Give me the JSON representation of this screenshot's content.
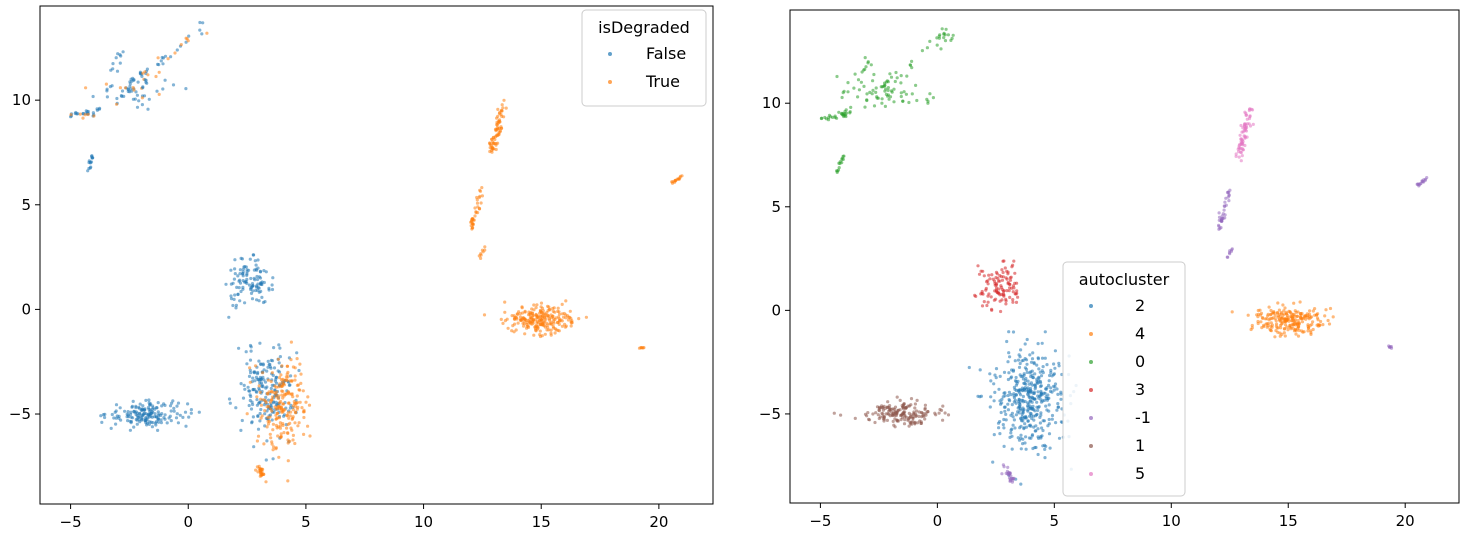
{
  "chart_data": [
    {
      "type": "scatter",
      "title": "",
      "xlabel": "",
      "ylabel": "",
      "xlim": [
        -6.3,
        22.3
      ],
      "ylim": [
        -9.3,
        14.5
      ],
      "x_ticks": [
        -5,
        0,
        5,
        10,
        15,
        20
      ],
      "y_ticks": [
        -5,
        0,
        5,
        10
      ],
      "grid": false,
      "legend": {
        "title": "isDegraded",
        "placement": "top-right",
        "entries": [
          {
            "label": "False",
            "color": "#1f77b4"
          },
          {
            "label": "True",
            "color": "#ff7f0e"
          }
        ]
      },
      "clusters": [
        {
          "series": "False",
          "kind": "line",
          "from": [
            -3.0,
            10.3
          ],
          "to": [
            0.8,
            13.6
          ],
          "n": 30,
          "spread": 0.2
        },
        {
          "series": "True",
          "kind": "line",
          "from": [
            -2.0,
            10.9
          ],
          "to": [
            0.8,
            13.6
          ],
          "n": 14,
          "spread": 0.2
        },
        {
          "series": "False",
          "kind": "blob",
          "center": [
            -2.2,
            10.5
          ],
          "sx": 0.9,
          "sy": 0.35,
          "n": 45
        },
        {
          "series": "True",
          "kind": "blob",
          "center": [
            -2.2,
            10.5
          ],
          "sx": 0.9,
          "sy": 0.35,
          "n": 10
        },
        {
          "series": "False",
          "kind": "line",
          "from": [
            -2.9,
            12.2
          ],
          "to": [
            -3.3,
            11.0
          ],
          "n": 10,
          "spread": 0.15
        },
        {
          "series": "False",
          "kind": "line",
          "from": [
            -5.0,
            9.2
          ],
          "to": [
            -3.6,
            9.6
          ],
          "n": 22,
          "spread": 0.08
        },
        {
          "series": "True",
          "kind": "line",
          "from": [
            -5.0,
            9.2
          ],
          "to": [
            -4.0,
            9.3
          ],
          "n": 6,
          "spread": 0.05
        },
        {
          "series": "False",
          "kind": "line",
          "from": [
            -4.3,
            6.7
          ],
          "to": [
            -4.0,
            7.5
          ],
          "n": 14,
          "spread": 0.07
        },
        {
          "series": "False",
          "kind": "blob",
          "center": [
            2.6,
            1.2
          ],
          "sx": 0.45,
          "sy": 0.55,
          "n": 110
        },
        {
          "series": "False",
          "kind": "blob",
          "center": [
            -1.7,
            -5.0
          ],
          "sx": 0.85,
          "sy": 0.3,
          "n": 170
        },
        {
          "series": "False",
          "kind": "blob",
          "center": [
            3.3,
            -3.9
          ],
          "sx": 0.6,
          "sy": 1.1,
          "n": 200
        },
        {
          "series": "True",
          "kind": "blob",
          "center": [
            4.1,
            -4.5
          ],
          "sx": 0.5,
          "sy": 1.1,
          "n": 210
        },
        {
          "series": "True",
          "kind": "line",
          "from": [
            3.0,
            -7.6
          ],
          "to": [
            3.3,
            -8.2
          ],
          "n": 25,
          "spread": 0.12
        },
        {
          "series": "True",
          "kind": "line",
          "from": [
            12.9,
            7.5
          ],
          "to": [
            13.4,
            9.9
          ],
          "n": 70,
          "spread": 0.15
        },
        {
          "series": "True",
          "kind": "line",
          "from": [
            12.0,
            3.8
          ],
          "to": [
            12.5,
            5.8
          ],
          "n": 35,
          "spread": 0.1
        },
        {
          "series": "True",
          "kind": "line",
          "from": [
            12.4,
            2.5
          ],
          "to": [
            12.6,
            2.9
          ],
          "n": 8,
          "spread": 0.05
        },
        {
          "series": "True",
          "kind": "blob",
          "center": [
            15.0,
            -0.5
          ],
          "sx": 0.75,
          "sy": 0.35,
          "n": 230
        },
        {
          "series": "True",
          "kind": "line",
          "from": [
            20.5,
            6.0
          ],
          "to": [
            21.0,
            6.4
          ],
          "n": 15,
          "spread": 0.04
        },
        {
          "series": "True",
          "kind": "blob",
          "center": [
            19.3,
            -1.8
          ],
          "sx": 0.06,
          "sy": 0.04,
          "n": 6
        }
      ]
    },
    {
      "type": "scatter",
      "title": "",
      "xlabel": "",
      "ylabel": "",
      "xlim": [
        -6.3,
        22.3
      ],
      "ylim": [
        -9.3,
        14.5
      ],
      "x_ticks": [
        -5,
        0,
        5,
        10,
        15,
        20
      ],
      "y_ticks": [
        -5,
        0,
        5,
        10
      ],
      "grid": false,
      "legend": {
        "title": "autocluster",
        "placement": "center",
        "entries": [
          {
            "label": "2",
            "color": "#1f77b4"
          },
          {
            "label": "4",
            "color": "#ff7f0e"
          },
          {
            "label": "0",
            "color": "#2ca02c"
          },
          {
            "label": "3",
            "color": "#d62728"
          },
          {
            "label": "-1",
            "color": "#9467bd"
          },
          {
            "label": "1",
            "color": "#8c564b"
          },
          {
            "label": "5",
            "color": "#e377c2"
          }
        ]
      },
      "clusters": [
        {
          "series": "0",
          "kind": "line",
          "from": [
            -3.0,
            10.3
          ],
          "to": [
            0.8,
            13.6
          ],
          "n": 44,
          "spread": 0.2
        },
        {
          "series": "0",
          "kind": "blob",
          "center": [
            -2.2,
            10.5
          ],
          "sx": 0.9,
          "sy": 0.35,
          "n": 55
        },
        {
          "series": "0",
          "kind": "line",
          "from": [
            -2.9,
            12.2
          ],
          "to": [
            -3.3,
            11.0
          ],
          "n": 10,
          "spread": 0.15
        },
        {
          "series": "0",
          "kind": "line",
          "from": [
            -5.0,
            9.2
          ],
          "to": [
            -3.6,
            9.6
          ],
          "n": 28,
          "spread": 0.08
        },
        {
          "series": "0",
          "kind": "line",
          "from": [
            -4.3,
            6.7
          ],
          "to": [
            -4.0,
            7.5
          ],
          "n": 14,
          "spread": 0.07
        },
        {
          "series": "3",
          "kind": "blob",
          "center": [
            2.6,
            1.2
          ],
          "sx": 0.45,
          "sy": 0.55,
          "n": 110
        },
        {
          "series": "1",
          "kind": "blob",
          "center": [
            -1.5,
            -5.0
          ],
          "sx": 0.85,
          "sy": 0.3,
          "n": 170
        },
        {
          "series": "2",
          "kind": "blob",
          "center": [
            3.9,
            -4.2
          ],
          "sx": 0.75,
          "sy": 1.2,
          "n": 410
        },
        {
          "series": "-1",
          "kind": "line",
          "from": [
            2.8,
            -7.6
          ],
          "to": [
            3.3,
            -8.2
          ],
          "n": 25,
          "spread": 0.12
        },
        {
          "series": "5",
          "kind": "line",
          "from": [
            12.9,
            7.5
          ],
          "to": [
            13.4,
            9.9
          ],
          "n": 70,
          "spread": 0.15
        },
        {
          "series": "-1",
          "kind": "line",
          "from": [
            12.0,
            3.8
          ],
          "to": [
            12.5,
            5.8
          ],
          "n": 35,
          "spread": 0.1
        },
        {
          "series": "-1",
          "kind": "line",
          "from": [
            12.4,
            2.5
          ],
          "to": [
            12.6,
            2.9
          ],
          "n": 8,
          "spread": 0.05
        },
        {
          "series": "4",
          "kind": "blob",
          "center": [
            15.0,
            -0.5
          ],
          "sx": 0.75,
          "sy": 0.35,
          "n": 230
        },
        {
          "series": "-1",
          "kind": "line",
          "from": [
            20.5,
            6.0
          ],
          "to": [
            21.0,
            6.4
          ],
          "n": 15,
          "spread": 0.04
        },
        {
          "series": "-1",
          "kind": "blob",
          "center": [
            19.3,
            -1.8
          ],
          "sx": 0.06,
          "sy": 0.04,
          "n": 6
        }
      ]
    }
  ]
}
